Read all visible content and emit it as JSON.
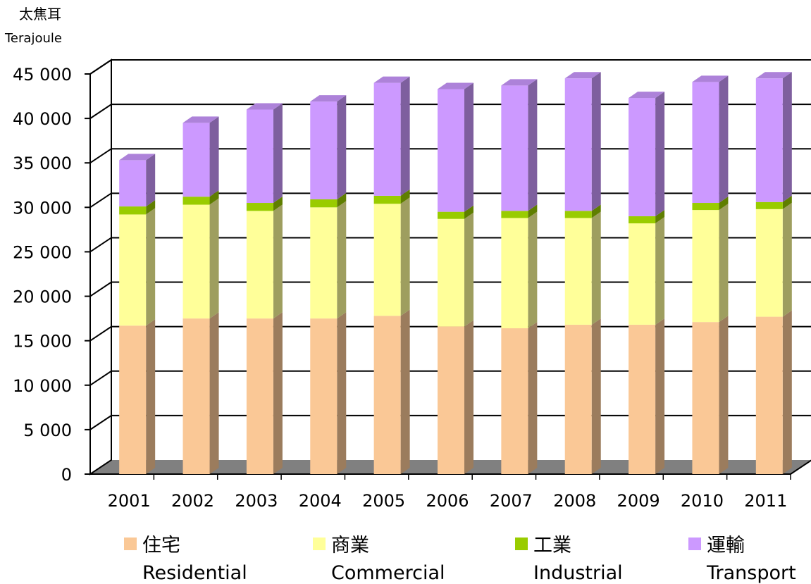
{
  "chart_data": {
    "type": "bar",
    "stacked": true,
    "three_d": true,
    "unit_label_zh": "太焦耳",
    "unit_label_en": "Terajoule",
    "categories": [
      "2001",
      "2002",
      "2003",
      "2004",
      "2005",
      "2006",
      "2007",
      "2008",
      "2009",
      "2010",
      "2011"
    ],
    "series": [
      {
        "name_zh": "住宅",
        "name_en": "Residential",
        "color": "#FAC896",
        "values": [
          16700,
          17500,
          17500,
          17500,
          17800,
          16600,
          16400,
          16800,
          16800,
          17100,
          17700
        ]
      },
      {
        "name_zh": "商業",
        "name_en": "Commercial",
        "color": "#FFFF99",
        "values": [
          12500,
          12800,
          12100,
          12500,
          12600,
          12100,
          12400,
          12000,
          11400,
          12600,
          12100
        ]
      },
      {
        "name_zh": "工業",
        "name_en": "Industrial",
        "color": "#99CC00",
        "values": [
          900,
          900,
          900,
          900,
          900,
          800,
          800,
          800,
          800,
          800,
          800
        ]
      },
      {
        "name_zh": "運輸",
        "name_en": "Transport",
        "color": "#CC99FF",
        "values": [
          5200,
          8300,
          10500,
          11000,
          12700,
          13800,
          14100,
          14900,
          13300,
          13600,
          13900
        ]
      }
    ],
    "ylim": [
      0,
      45000
    ],
    "yticks": [
      "0",
      "5 000",
      "10 000",
      "15 000",
      "20 000",
      "25 000",
      "30 000",
      "35 000",
      "40 000",
      "45 000"
    ],
    "grid": true,
    "legend_position": "bottom"
  }
}
